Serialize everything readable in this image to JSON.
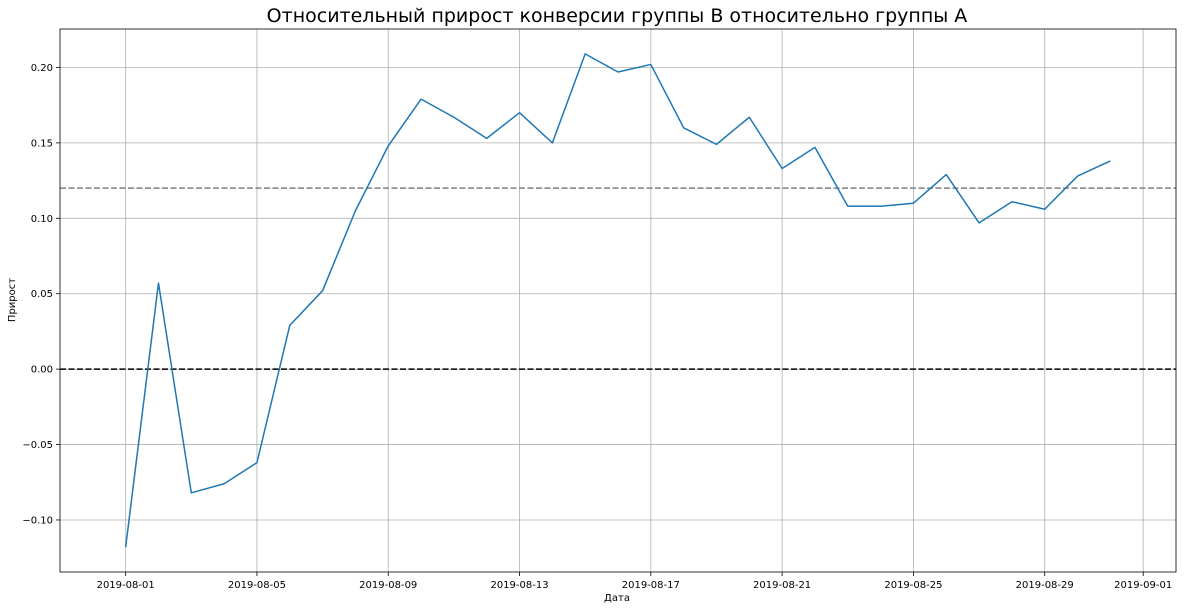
{
  "chart_data": {
    "type": "line",
    "title": "Относительный прирост конверсии группы B относительно группы A",
    "xlabel": "Дата",
    "ylabel": "Прирост",
    "x": [
      "2019-08-01",
      "2019-08-02",
      "2019-08-03",
      "2019-08-04",
      "2019-08-05",
      "2019-08-06",
      "2019-08-07",
      "2019-08-08",
      "2019-08-09",
      "2019-08-10",
      "2019-08-11",
      "2019-08-12",
      "2019-08-13",
      "2019-08-14",
      "2019-08-15",
      "2019-08-16",
      "2019-08-17",
      "2019-08-18",
      "2019-08-19",
      "2019-08-20",
      "2019-08-21",
      "2019-08-22",
      "2019-08-23",
      "2019-08-24",
      "2019-08-25",
      "2019-08-26",
      "2019-08-27",
      "2019-08-28",
      "2019-08-29",
      "2019-08-30",
      "2019-08-31"
    ],
    "series": [
      {
        "values": [
          -0.118,
          0.057,
          -0.082,
          -0.076,
          -0.062,
          0.029,
          0.052,
          0.105,
          0.148,
          0.179,
          0.167,
          0.153,
          0.17,
          0.15,
          0.209,
          0.197,
          0.202,
          0.16,
          0.149,
          0.167,
          0.133,
          0.147,
          0.108,
          0.108,
          0.11,
          0.129,
          0.097,
          0.111,
          0.106,
          0.128,
          0.138
        ],
        "color": "#1f77b4"
      }
    ],
    "hlines": [
      {
        "y": 0.0,
        "color": "#000000",
        "style": "dashed"
      },
      {
        "y": 0.12,
        "color": "#808080",
        "style": "dashed"
      }
    ],
    "xticks": [
      "2019-08-01",
      "2019-08-05",
      "2019-08-09",
      "2019-08-13",
      "2019-08-17",
      "2019-08-21",
      "2019-08-25",
      "2019-08-29",
      "2019-09-01"
    ],
    "yticks": [
      -0.1,
      -0.05,
      0.0,
      0.05,
      0.1,
      0.15,
      0.2
    ],
    "ytick_labels": [
      "−0.10",
      "−0.05",
      "0.00",
      "0.05",
      "0.10",
      "0.15",
      "0.20"
    ],
    "xlim": [
      "2019-07-30",
      "2019-09-02"
    ],
    "ylim": [
      -0.1345,
      0.2255
    ],
    "grid": true
  }
}
